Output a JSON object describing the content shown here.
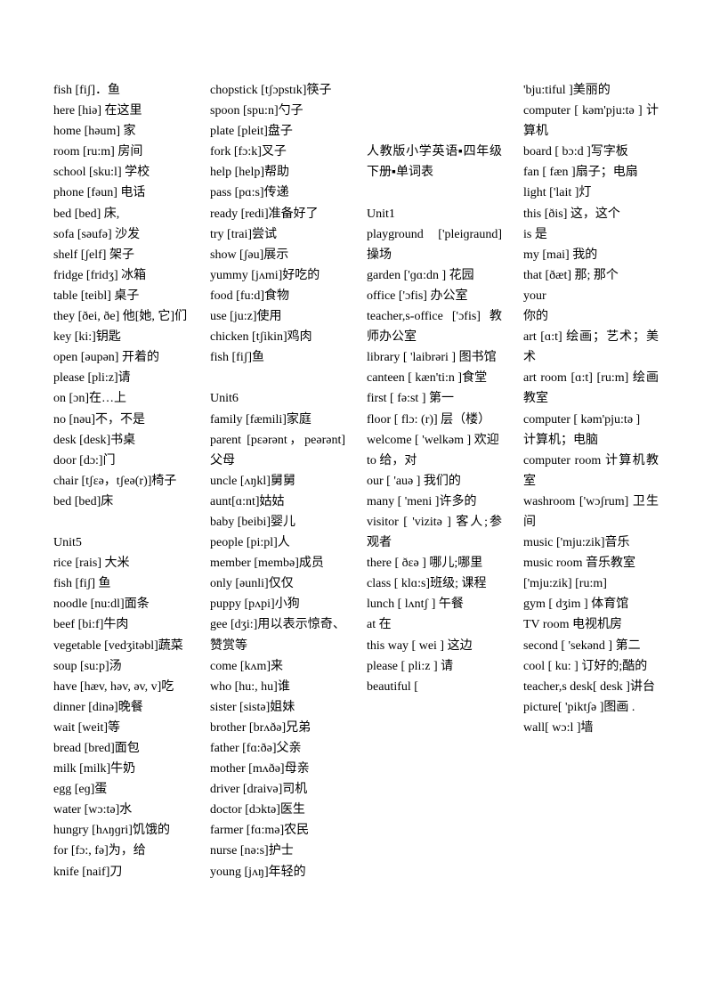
{
  "columns": [
    [
      {
        "text": "fish [fiʃ]．鱼"
      },
      {
        "text": "here [hiə] 在这里"
      },
      {
        "text": "home [həum] 家"
      },
      {
        "text": "room [ru:m] 房间"
      },
      {
        "text": "school [sku:l] 学校"
      },
      {
        "text": "phone [fəun] 电话"
      },
      {
        "text": "bed [bed] 床,"
      },
      {
        "text": "sofa [səufə] 沙发"
      },
      {
        "text": "shelf [ʃelf] 架子"
      },
      {
        "text": "fridge [fridʒ] 冰箱"
      },
      {
        "text": "table [teibl] 桌子"
      },
      {
        "text": "they [ðei, ðe] 他[她, 它]们"
      },
      {
        "text": "key [ki:]钥匙"
      },
      {
        "text": "open [əupən] 开着的"
      },
      {
        "text": "please [pli:z]请"
      },
      {
        "text": "on [ɔn]在…上"
      },
      {
        "text": "no [nəu]不，不是"
      },
      {
        "text": "desk [desk]书桌"
      },
      {
        "text": "door [dɔ:]门"
      },
      {
        "text": "chair [tʃɛə，tʃeə(r)]椅子"
      },
      {
        "text": "bed [bed]床"
      },
      {
        "blank": true
      },
      {
        "text": "Unit5"
      },
      {
        "text": "rice [rais] 大米"
      },
      {
        "text": "fish [fiʃ] 鱼"
      },
      {
        "text": "noodle [nu:dl]面条"
      },
      {
        "text": "beef [bi:f]牛肉"
      },
      {
        "text": "vegetable [vedʒitəbl]蔬菜"
      },
      {
        "text": "soup [su:p]汤"
      },
      {
        "text": "have [hæv, həv, əv, v]吃"
      },
      {
        "text": "dinner [dinə]晚餐"
      },
      {
        "text": "wait [weit]等"
      },
      {
        "text": "bread [bred]面包"
      },
      {
        "text": "milk [milk]牛奶"
      },
      {
        "text": "egg [eɡ]蛋"
      },
      {
        "text": "water [wɔ:tə]水"
      },
      {
        "text": "hungry [hʌŋɡri]饥饿的"
      },
      {
        "text": "for [fɔ:, fə]为，给"
      },
      {
        "text": "knife [naif]刀"
      }
    ],
    [
      {
        "text": "chopstick [tʃɔpstɪk]筷子"
      },
      {
        "text": "spoon [spu:n]勺子"
      },
      {
        "text": "plate [pleit]盘子"
      },
      {
        "text": "fork [fɔ:k]叉子"
      },
      {
        "text": "help [help]帮助"
      },
      {
        "text": "pass [pɑ:s]传递"
      },
      {
        "text": "ready [redi]准备好了"
      },
      {
        "text": "try [trai]尝试"
      },
      {
        "text": "show [ʃəu]展示"
      },
      {
        "text": "yummy [jʌmi]好吃的"
      },
      {
        "text": "food [fu:d]食物"
      },
      {
        "text": "use [ju:z]使用"
      },
      {
        "text": "chicken [tʃikin]鸡肉"
      },
      {
        "text": "fish [fiʃ]鱼"
      },
      {
        "blank": true
      },
      {
        "text": "Unit6"
      },
      {
        "text": "family [fæmili]家庭"
      },
      {
        "text": "parent [pɛərənt，peərənt]父母"
      },
      {
        "text": "uncle [ʌŋkl]舅舅"
      },
      {
        "text": "aunt[ɑ:nt]姑姑"
      },
      {
        "text": "baby [beibi]婴儿"
      },
      {
        "text": "people [pi:pl]人"
      },
      {
        "text": "member [membə]成员"
      },
      {
        "text": "only [əunli]仅仅"
      },
      {
        "text": "puppy [pʌpi]小狗"
      },
      {
        "text": "gee [dʒi:]用以表示惊奇、赞赏等"
      },
      {
        "text": "come [kʌm]来"
      },
      {
        "text": "who [hu:, hu]谁"
      },
      {
        "text": "sister [sistə]姐妹"
      },
      {
        "text": "brother [brʌðə]兄弟"
      },
      {
        "text": "father [fɑ:ðə]父亲"
      },
      {
        "text": "mother [mʌðə]母亲"
      },
      {
        "text": "driver [draivə]司机"
      },
      {
        "text": "doctor [dɔktə]医生"
      },
      {
        "text": "farmer [fɑ:mə]农民"
      },
      {
        "text": "nurse [nə:s]护士"
      },
      {
        "text": "young [jʌŋ]年轻的"
      }
    ],
    [
      {
        "blank": true
      },
      {
        "blank": true
      },
      {
        "blank": true
      },
      {
        "text": "人教版小学英语▪四年级下册▪单词表"
      },
      {
        "blank": true
      },
      {
        "text": "Unit1"
      },
      {
        "text": "playground ['pleiɡraund] 操场"
      },
      {
        "text": "garden ['ɡɑ:dn ] 花园"
      },
      {
        "text": "office ['ɔfis] 办公室"
      },
      {
        "text": "teacher,s-office ['ɔfis] 教师办公室"
      },
      {
        "text": "library [ 'laibrəri ] 图书馆"
      },
      {
        "text": "canteen [ kæn'ti:n ]食堂"
      },
      {
        "text": "first [ fə:st ] 第一"
      },
      {
        "text": "floor [ flɔ: (r)] 层（楼）"
      },
      {
        "text": "welcome [ 'welkəm ] 欢迎"
      },
      {
        "text": "to 给，对"
      },
      {
        "text": "our [ 'auə ] 我们的"
      },
      {
        "text": "many [ 'meni ]许多的"
      },
      {
        "text": "visitor [ 'vizitə ] 客人;参观者"
      },
      {
        "text": "there [ ðɛə ] 哪儿;哪里"
      },
      {
        "text": "class [ klɑ:s]班级; 课程"
      },
      {
        "text": "lunch [ lʌntʃ ] 午餐"
      },
      {
        "text": "at 在"
      },
      {
        "text": "this way [ wei ] 这边"
      },
      {
        "text": "please [ pli:z ] 请"
      },
      {
        "text": "beautiful ["
      }
    ],
    [
      {
        "text": "'bju:tiful ]美丽的"
      },
      {
        "text": "computer [ kəm'pju:tə ] 计算机"
      },
      {
        "text": "board [ bɔ:d ]写字板"
      },
      {
        "text": "fan [ fæn ]扇子；电扇"
      },
      {
        "text": "light ['lait ]灯"
      },
      {
        "text": "this [ðis] 这，这个"
      },
      {
        "text": "is 是"
      },
      {
        "text": "my [mai] 我的"
      },
      {
        "text": "that [ðæt] 那; 那个"
      },
      {
        "text": "your"
      },
      {
        "text": "你的"
      },
      {
        "text": "art [ɑ:t] 绘画；艺术；美术"
      },
      {
        "text": "art room [ɑ:t] [ru:m] 绘画教室"
      },
      {
        "text": "computer [ kəm'pju:tə ]"
      },
      {
        "text": "计算机；电脑"
      },
      {
        "text": "computer room 计算机教室"
      },
      {
        "text": "washroom ['wɔʃrum] 卫生间"
      },
      {
        "text": "music ['mju:zik]音乐"
      },
      {
        "text": "music room 音乐教室"
      },
      {
        "text": "['mju:zik] [ru:m]"
      },
      {
        "text": "gym [ dʒim ] 体育馆"
      },
      {
        "text": "TV room 电视机房"
      },
      {
        "text": "second [ 'sekənd ] 第二"
      },
      {
        "text": "cool [ ku: ] 订好的;酷的"
      },
      {
        "text": "teacher,s desk[ desk ]讲台"
      },
      {
        "text": "picture[ 'piktʃə ]图画 ."
      },
      {
        "text": "wall[ wɔ:l ]墙"
      }
    ]
  ]
}
